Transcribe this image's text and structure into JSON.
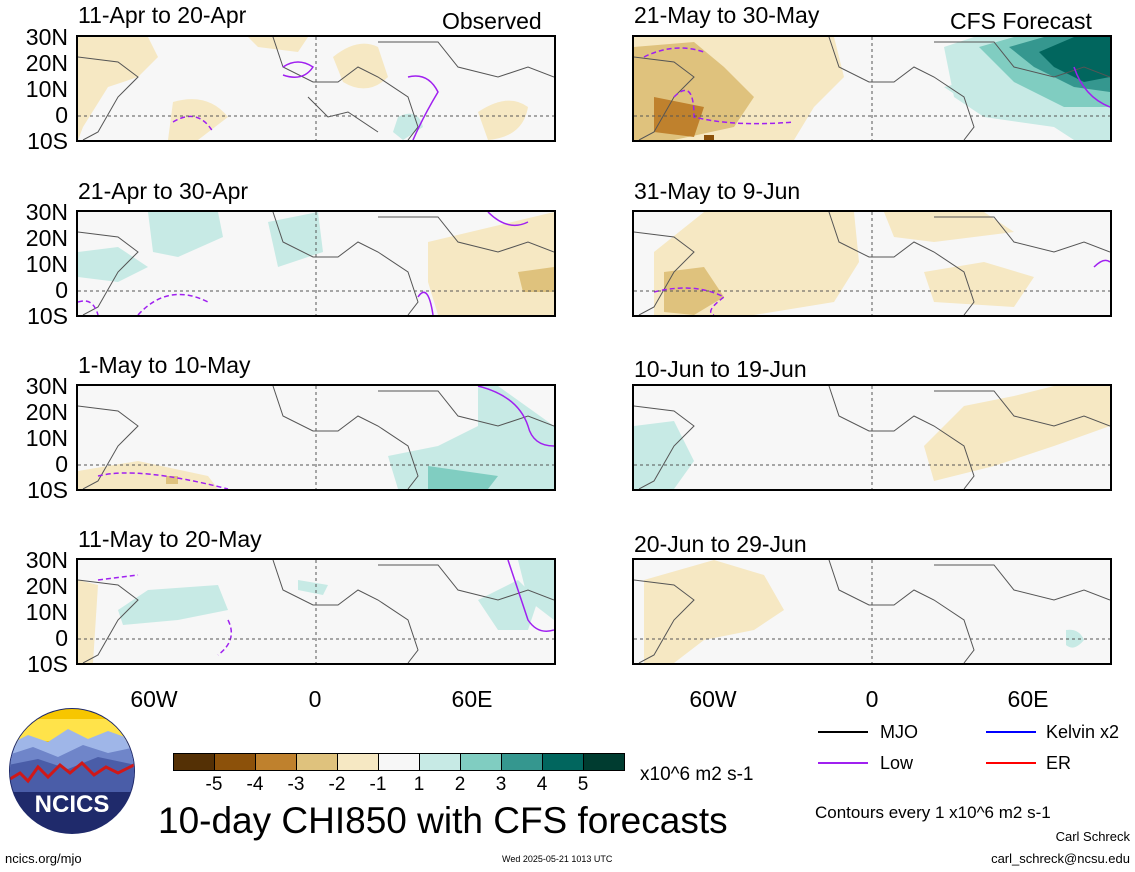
{
  "headers": {
    "left": "Observed",
    "right": "CFS Forecast"
  },
  "panels": [
    {
      "id": "p1",
      "title": "11-Apr to 20-Apr"
    },
    {
      "id": "p2",
      "title": "21-Apr to 30-Apr"
    },
    {
      "id": "p3",
      "title": "1-May to 10-May"
    },
    {
      "id": "p4",
      "title": "11-May to 20-May"
    },
    {
      "id": "p5",
      "title": "21-May to 30-May"
    },
    {
      "id": "p6",
      "title": "31-May to 9-Jun"
    },
    {
      "id": "p7",
      "title": "10-Jun to 19-Jun"
    },
    {
      "id": "p8",
      "title": "20-Jun to 29-Jun"
    }
  ],
  "lat_labels": [
    "30N",
    "20N",
    "10N",
    "0",
    "10S"
  ],
  "lon_labels": [
    "60W",
    "0",
    "60E"
  ],
  "colorbar": {
    "ticks": [
      "-5",
      "-4",
      "-3",
      "-2",
      "-1",
      "1",
      "2",
      "3",
      "4",
      "5"
    ],
    "colors": [
      "#543005",
      "#8c510a",
      "#bf812d",
      "#dfc27d",
      "#f6e8c3",
      "#f7f7f7",
      "#c7eae5",
      "#80cdc1",
      "#35978f",
      "#01665e",
      "#003c30"
    ],
    "units": "x10^6 m2 s-1"
  },
  "legend": {
    "items": [
      {
        "label": "MJO",
        "color": "#000000"
      },
      {
        "label": "Kelvin x2",
        "color": "#0000ff"
      },
      {
        "label": "Low",
        "color": "#a020f0"
      },
      {
        "label": "ER",
        "color": "#ff0000"
      }
    ],
    "contours_note": "Contours every 1 x10^6 m2 s-1"
  },
  "main_title": "10-day CHI850 with CFS forecasts",
  "logo_text": "NCICS",
  "footer": {
    "url": "ncics.org/mjo",
    "timestamp": "Wed 2025-05-21 1013 UTC",
    "author": "Carl Schreck",
    "email": "carl_schreck@ncsu.edu"
  }
}
